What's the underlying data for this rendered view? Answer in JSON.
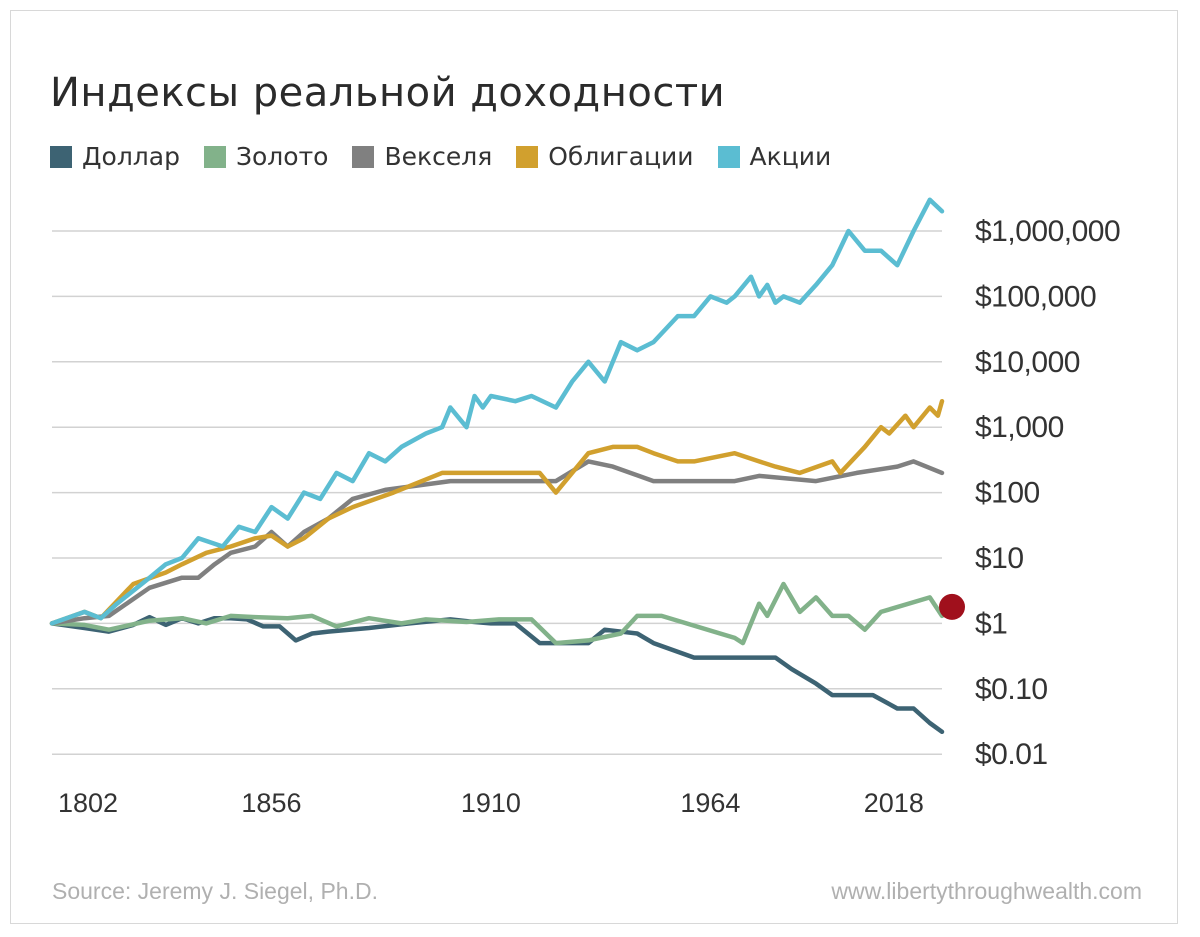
{
  "chart_data": {
    "type": "line",
    "title": "Индексы реальной доходности",
    "yscale": "log",
    "ylim": [
      0.01,
      3000000
    ],
    "xlim": [
      1802,
      2021
    ],
    "y_tick_values": [
      1000000,
      100000,
      10000,
      1000,
      100,
      10,
      1,
      0.1,
      0.01
    ],
    "y_tick_labels": [
      "$1,000,000",
      "$100,000",
      "$10,000",
      "$1,000",
      "$100",
      "$10",
      "$1",
      "$0.10",
      "$0.01"
    ],
    "x_tick_values": [
      1802,
      1856,
      1910,
      1964,
      2018
    ],
    "x_tick_labels": [
      "1802",
      "1856",
      "1910",
      "1964",
      "2018"
    ],
    "grid": "horizontal",
    "legend_position": "top-left",
    "series": [
      {
        "name": "Доллар",
        "color": "#3d6373",
        "x": [
          1802,
          1810,
          1816,
          1822,
          1826,
          1830,
          1834,
          1838,
          1842,
          1846,
          1850,
          1854,
          1858,
          1862,
          1866,
          1870,
          1880,
          1890,
          1900,
          1906,
          1910,
          1916,
          1922,
          1928,
          1934,
          1938,
          1946,
          1950,
          1960,
          1970,
          1980,
          1984,
          1990,
          1994,
          2000,
          2004,
          2010,
          2014,
          2018,
          2021
        ],
        "y": [
          1,
          0.85,
          0.75,
          0.95,
          1.25,
          0.95,
          1.2,
          1.0,
          1.2,
          1.2,
          1.15,
          0.9,
          0.9,
          0.55,
          0.7,
          0.75,
          0.85,
          1.0,
          1.15,
          1.05,
          1.0,
          1.0,
          0.5,
          0.5,
          0.5,
          0.8,
          0.7,
          0.5,
          0.3,
          0.3,
          0.3,
          0.2,
          0.12,
          0.08,
          0.08,
          0.08,
          0.05,
          0.05,
          0.03,
          0.022
        ]
      },
      {
        "name": "Золото",
        "color": "#82b28a",
        "x": [
          1802,
          1810,
          1816,
          1826,
          1834,
          1840,
          1846,
          1852,
          1860,
          1866,
          1872,
          1880,
          1888,
          1894,
          1904,
          1912,
          1920,
          1926,
          1934,
          1942,
          1946,
          1952,
          1970,
          1972,
          1976,
          1978,
          1982,
          1986,
          1990,
          1994,
          1998,
          2002,
          2006,
          2018,
          2021
        ],
        "y": [
          1,
          0.95,
          0.8,
          1.1,
          1.2,
          1.0,
          1.3,
          1.25,
          1.2,
          1.3,
          0.9,
          1.2,
          1.0,
          1.15,
          1.05,
          1.15,
          1.15,
          0.5,
          0.55,
          0.7,
          1.3,
          1.3,
          0.6,
          0.5,
          2.0,
          1.3,
          4.0,
          1.5,
          2.5,
          1.3,
          1.3,
          0.8,
          1.5,
          2.5,
          1.3
        ]
      },
      {
        "name": "Векселя",
        "color": "#808080",
        "x": [
          1802,
          1810,
          1816,
          1826,
          1834,
          1838,
          1842,
          1846,
          1852,
          1856,
          1860,
          1864,
          1870,
          1876,
          1884,
          1900,
          1906,
          1916,
          1922,
          1926,
          1934,
          1940,
          1950,
          1960,
          1970,
          1976,
          1990,
          2000,
          2010,
          2014,
          2021
        ],
        "y": [
          1,
          1.2,
          1.3,
          3.5,
          5,
          5,
          8,
          12,
          15,
          25,
          15,
          25,
          40,
          80,
          110,
          150,
          150,
          150,
          150,
          150,
          300,
          250,
          150,
          150,
          150,
          180,
          150,
          200,
          250,
          300,
          200
        ]
      },
      {
        "name": "Облигации",
        "color": "#d1a02e",
        "x": [
          1802,
          1810,
          1814,
          1822,
          1830,
          1834,
          1840,
          1846,
          1852,
          1856,
          1860,
          1864,
          1870,
          1876,
          1886,
          1898,
          1906,
          1916,
          1922,
          1926,
          1934,
          1940,
          1946,
          1950,
          1956,
          1960,
          1970,
          1976,
          1980,
          1986,
          1994,
          1996,
          2002,
          2006,
          2008,
          2012,
          2014,
          2018,
          2020,
          2021
        ],
        "y": [
          1,
          1.5,
          1.2,
          4,
          6,
          8,
          12,
          15,
          20,
          22,
          15,
          20,
          40,
          60,
          100,
          200,
          200,
          200,
          200,
          100,
          400,
          500,
          500,
          400,
          300,
          300,
          400,
          300,
          250,
          200,
          300,
          200,
          500,
          1000,
          800,
          1500,
          1000,
          2000,
          1500,
          2500
        ]
      },
      {
        "name": "Акции",
        "color": "#5bbdd2",
        "x": [
          1802,
          1810,
          1814,
          1818,
          1826,
          1830,
          1834,
          1838,
          1844,
          1848,
          1852,
          1856,
          1860,
          1864,
          1868,
          1872,
          1876,
          1880,
          1884,
          1888,
          1894,
          1898,
          1900,
          1904,
          1906,
          1908,
          1910,
          1916,
          1920,
          1926,
          1930,
          1934,
          1938,
          1940,
          1942,
          1946,
          1950,
          1956,
          1960,
          1964,
          1968,
          1970,
          1974,
          1976,
          1978,
          1980,
          1982,
          1986,
          1990,
          1994,
          1998,
          2002,
          2006,
          2010,
          2014,
          2018,
          2021
        ],
        "y": [
          1,
          1.5,
          1.2,
          2,
          5,
          8,
          10,
          20,
          15,
          30,
          25,
          60,
          40,
          100,
          80,
          200,
          150,
          400,
          300,
          500,
          800,
          1000,
          2000,
          1000,
          3000,
          2000,
          3000,
          2500,
          3000,
          2000,
          5000,
          10000,
          5000,
          10000,
          20000,
          15000,
          20000,
          50000,
          50000,
          100000,
          80000,
          100000,
          200000,
          100000,
          150000,
          80000,
          100000,
          80000,
          150000,
          300000,
          1000000,
          500000,
          500000,
          300000,
          1000000,
          3000000,
          2000000
        ]
      }
    ],
    "marker": {
      "x": 2021,
      "y": 1.5,
      "color": "#a0101c"
    }
  },
  "source_text": "Source: Jeremy J. Siegel, Ph.D.",
  "website_text": "www.libertythroughwealth.com"
}
